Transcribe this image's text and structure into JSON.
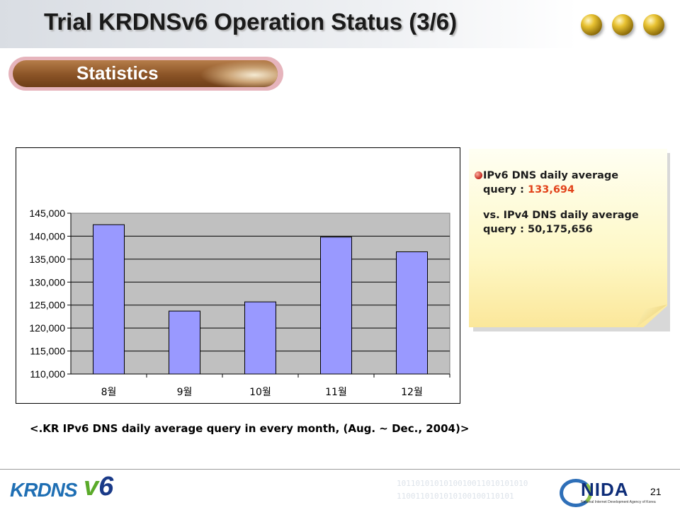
{
  "title": "Trial KRDNSv6 Operation Status (3/6)",
  "section": "Statistics",
  "chart_data": {
    "type": "bar",
    "categories": [
      "8월",
      "9월",
      "10월",
      "11월",
      "12월"
    ],
    "values": [
      142500,
      123700,
      125700,
      139800,
      136600
    ],
    "ylim": [
      110000,
      145000
    ],
    "yticks": [
      "145,000",
      "140,000",
      "135,000",
      "130,000",
      "125,000",
      "120,000",
      "115,000",
      "110,000"
    ],
    "title": "",
    "xlabel": "",
    "ylabel": "",
    "grid": true,
    "bar_color": "#9999ff",
    "plot_bg": "#c0c0c0"
  },
  "caption": "<.KR IPv6 DNS daily average query in every month, (Aug. ~ Dec., 2004)>",
  "note": {
    "line1": "IPv6 DNS daily average",
    "line2_prefix": "query : ",
    "line2_value": "133,694",
    "line3": "vs. IPv4 DNS daily average",
    "line4": "query : 50,175,656"
  },
  "footer": {
    "logo_left_a": "KRDNS",
    "logo_left_b": "v",
    "logo_left_c": "6",
    "binary_1": "1011010101010010011010101010",
    "binary_2": "1100110101010100100110101",
    "logo_right": "NIDA",
    "logo_right_sub": "National Internet Development Agency of Korea",
    "page_number": "21"
  },
  "colors": {
    "highlight": "#e2431a",
    "brand_blue": "#1f6fb4"
  }
}
